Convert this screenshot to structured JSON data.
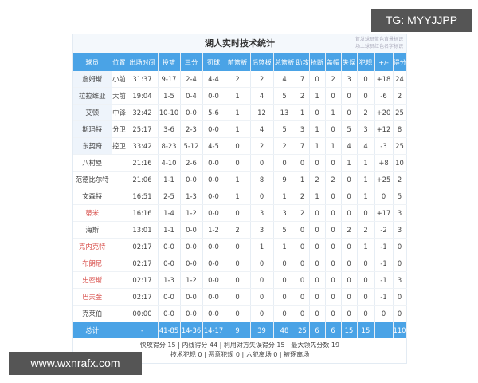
{
  "title": "湖人实时技术统计",
  "note": [
    "首发球员蓝色背景标识",
    "场上球员红色名字标识"
  ],
  "headers": [
    "球员",
    "位置",
    "出场时间",
    "投篮",
    "三分",
    "罚球",
    "前篮板",
    "后篮板",
    "总篮板",
    "助攻",
    "抢断",
    "盖帽",
    "失误",
    "犯规",
    "+/-",
    "得分"
  ],
  "players": [
    {
      "name": "詹姆斯",
      "starter": true,
      "on_court": false,
      "stats": [
        "小前",
        "31:37",
        "9-17",
        "2-4",
        "4-4",
        "2",
        "2",
        "4",
        "7",
        "0",
        "2",
        "3",
        "0",
        "+18",
        "24"
      ]
    },
    {
      "name": "拉拉维亚",
      "starter": true,
      "on_court": false,
      "stats": [
        "大前",
        "19:04",
        "1-5",
        "0-4",
        "0-0",
        "1",
        "4",
        "5",
        "2",
        "1",
        "0",
        "0",
        "0",
        "-6",
        "2"
      ]
    },
    {
      "name": "艾顿",
      "starter": true,
      "on_court": false,
      "stats": [
        "中锋",
        "32:42",
        "10-10",
        "0-0",
        "5-6",
        "1",
        "12",
        "13",
        "1",
        "0",
        "1",
        "0",
        "2",
        "+20",
        "25"
      ]
    },
    {
      "name": "斯玛特",
      "starter": true,
      "on_court": false,
      "stats": [
        "分卫",
        "25:17",
        "3-6",
        "2-3",
        "0-0",
        "1",
        "4",
        "5",
        "3",
        "1",
        "0",
        "5",
        "3",
        "+12",
        "8"
      ]
    },
    {
      "name": "东契奇",
      "starter": true,
      "on_court": false,
      "stats": [
        "控卫",
        "33:42",
        "8-23",
        "5-12",
        "4-5",
        "0",
        "2",
        "2",
        "7",
        "1",
        "1",
        "4",
        "4",
        "-3",
        "25"
      ]
    },
    {
      "name": "八村塁",
      "starter": false,
      "on_court": false,
      "stats": [
        "",
        "21:16",
        "4-10",
        "2-6",
        "0-0",
        "0",
        "0",
        "0",
        "0",
        "0",
        "0",
        "1",
        "1",
        "+8",
        "10"
      ]
    },
    {
      "name": "范德比尔特",
      "starter": false,
      "on_court": false,
      "stats": [
        "",
        "21:06",
        "1-1",
        "0-0",
        "0-0",
        "1",
        "8",
        "9",
        "1",
        "2",
        "2",
        "0",
        "1",
        "+25",
        "2"
      ]
    },
    {
      "name": "文森特",
      "starter": false,
      "on_court": false,
      "stats": [
        "",
        "16:51",
        "2-5",
        "1-3",
        "0-0",
        "1",
        "0",
        "1",
        "2",
        "1",
        "0",
        "0",
        "1",
        "0",
        "5"
      ]
    },
    {
      "name": "蒂米",
      "starter": false,
      "on_court": true,
      "stats": [
        "",
        "16:16",
        "1-4",
        "1-2",
        "0-0",
        "0",
        "3",
        "3",
        "2",
        "0",
        "0",
        "0",
        "0",
        "+17",
        "3"
      ]
    },
    {
      "name": "海斯",
      "starter": false,
      "on_court": false,
      "stats": [
        "",
        "13:01",
        "1-1",
        "0-0",
        "1-2",
        "2",
        "3",
        "5",
        "0",
        "0",
        "0",
        "2",
        "2",
        "-2",
        "3"
      ]
    },
    {
      "name": "克内克特",
      "starter": false,
      "on_court": true,
      "stats": [
        "",
        "02:17",
        "0-0",
        "0-0",
        "0-0",
        "0",
        "1",
        "1",
        "0",
        "0",
        "0",
        "0",
        "1",
        "-1",
        "0"
      ]
    },
    {
      "name": "布朗尼",
      "starter": false,
      "on_court": true,
      "stats": [
        "",
        "02:17",
        "0-0",
        "0-0",
        "0-0",
        "0",
        "0",
        "0",
        "0",
        "0",
        "0",
        "0",
        "0",
        "-1",
        "0"
      ]
    },
    {
      "name": "史密斯",
      "starter": false,
      "on_court": true,
      "stats": [
        "",
        "02:17",
        "1-3",
        "1-2",
        "0-0",
        "0",
        "0",
        "0",
        "0",
        "0",
        "0",
        "0",
        "0",
        "-1",
        "3"
      ]
    },
    {
      "name": "巴夫金",
      "starter": false,
      "on_court": true,
      "stats": [
        "",
        "02:17",
        "0-0",
        "0-0",
        "0-0",
        "0",
        "0",
        "0",
        "0",
        "0",
        "0",
        "0",
        "0",
        "-1",
        "0"
      ]
    },
    {
      "name": "克莱伯",
      "starter": false,
      "on_court": false,
      "stats": [
        "",
        "00:00",
        "0-0",
        "0-0",
        "0-0",
        "0",
        "0",
        "0",
        "0",
        "0",
        "0",
        "0",
        "0",
        "0",
        "0"
      ]
    }
  ],
  "totals": [
    "总计",
    "",
    "-",
    "41-85",
    "14-36",
    "14-17",
    "9",
    "39",
    "48",
    "25",
    "6",
    "6",
    "15",
    "15",
    "",
    "110"
  ],
  "footer": [
    "快攻得分 15 | 内线得分 44 | 利用对方失误得分 15 | 最大领先分数 19",
    "技术犯规 0 | 恶意犯规 0 | 六犯离场 0 | 被逐离场"
  ],
  "watermarks": {
    "tg": "TG: MYYJJPP",
    "url": "www.wxnrafx.com"
  },
  "colors": {
    "header": "#4aa3e6",
    "on_court_name": "#d9534f",
    "starter_bg": "#eef4fb"
  }
}
